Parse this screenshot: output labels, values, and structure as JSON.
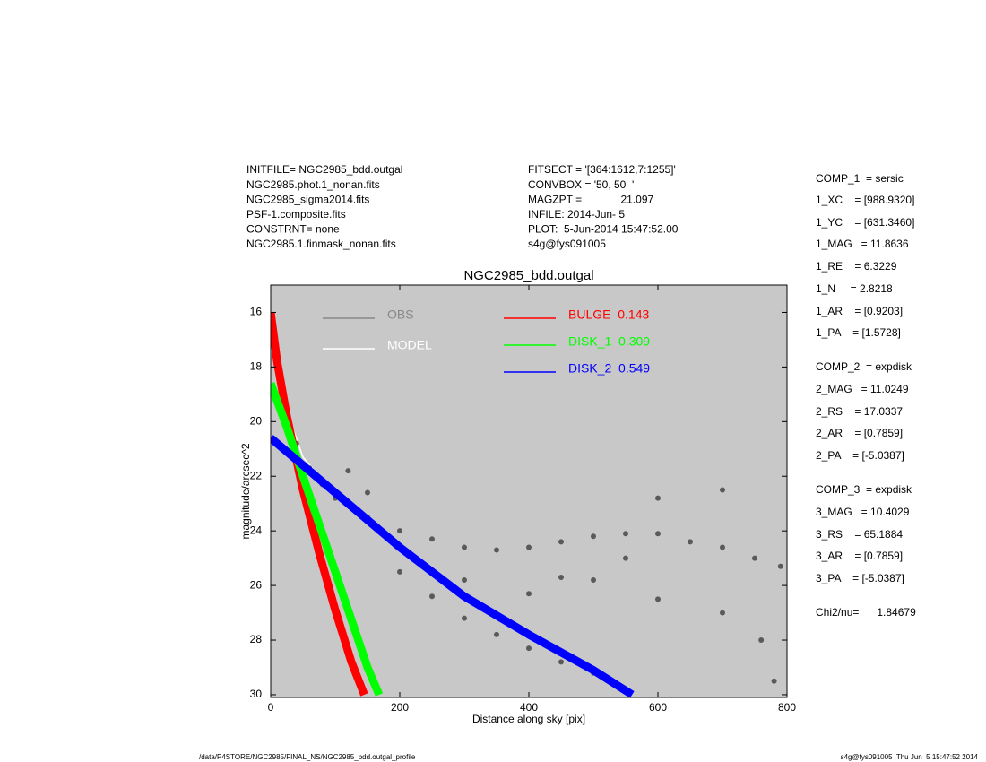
{
  "header": {
    "left": [
      "INITFILE= NGC2985_bdd.outgal",
      "NGC2985.phot.1_nonan.fits",
      "NGC2985_sigma2014.fits",
      "PSF-1.composite.fits",
      "CONSTRNT= none",
      "NGC2985.1.finmask_nonan.fits"
    ],
    "middle": [
      "FITSECT = '[364:1612,7:1255]'",
      "CONVBOX = '50, 50  '",
      "MAGZPT =             21.097",
      "INFILE: 2014-Jun- 5",
      "PLOT:  5-Jun-2014 15:47:52.00",
      "s4g@fys091005"
    ]
  },
  "parameters": [
    "COMP_1  = sersic",
    "1_XC    = [988.9320]",
    "1_YC    = [631.3460]",
    "1_MAG   = 11.8636",
    "1_RE    = 6.3229",
    "1_N     = 2.8218",
    "1_AR    = [0.9203]",
    "1_PA    = [1.5728]",
    "COMP_2  = expdisk",
    "2_MAG   = 11.0249",
    "2_RS    = 17.0337",
    "2_AR    = [0.7859]",
    "2_PA    = [-5.0387]",
    "COMP_3  = expdisk",
    "3_MAG   = 10.4029",
    "3_RS    = 65.1884",
    "3_AR    = [0.7859]",
    "3_PA    = [-5.0387]",
    "Chi2/nu=      1.84679"
  ],
  "footer": {
    "left": "/data/P4STORE/NGC2985/FINAL_NS/NGC2985_bdd.outgal_profile",
    "right": "s4g@fys091005  Thu Jun  5 15:47:52 2014"
  },
  "chart_data": {
    "type": "scatter",
    "title": "NGC2985_bdd.outgal",
    "x_label": "Distance along sky [pix]",
    "y_label": "magnitude/arcsec^2",
    "xlim": [
      0,
      800
    ],
    "xticks": [
      0,
      200,
      400,
      600,
      800
    ],
    "ylim": [
      30.1,
      15
    ],
    "yticks": [
      16,
      18,
      20,
      22,
      24,
      26,
      28,
      30
    ],
    "background": "#c8c8c8",
    "series": [
      {
        "name": "MODEL",
        "color": "#ffffff",
        "kind": "line",
        "x": [
          0,
          25,
          50,
          100,
          200,
          300,
          400
        ],
        "values": [
          16,
          19.6,
          21.3,
          22.7,
          24.6,
          26.4,
          27.8
        ]
      },
      {
        "name": "OBS",
        "color": "#5a5a5a",
        "kind": "points",
        "x": [
          2,
          5,
          10,
          20,
          40,
          60,
          80,
          100,
          120,
          150,
          150,
          200,
          200,
          250,
          250,
          300,
          300,
          300,
          350,
          350,
          400,
          400,
          400,
          450,
          450,
          450,
          500,
          500,
          500,
          550,
          550,
          600,
          600,
          600,
          650,
          700,
          700,
          700,
          750,
          760,
          780,
          790
        ],
        "values": [
          16.2,
          17,
          18,
          19.3,
          20.8,
          21.7,
          22.3,
          22.8,
          21.8,
          23.5,
          22.6,
          24,
          25.5,
          24.3,
          26.4,
          24.6,
          27.2,
          25.8,
          24.7,
          27.8,
          24.6,
          28.3,
          26.3,
          24.4,
          28.8,
          25.7,
          24.2,
          29.2,
          25.8,
          24.1,
          25,
          24.1,
          26.5,
          22.8,
          24.4,
          24.6,
          27,
          22.5,
          25,
          28,
          29.5,
          25.3
        ]
      },
      {
        "name": "BULGE  0.143",
        "color": "#ff0000",
        "kind": "band",
        "x": [
          0,
          10,
          25,
          50,
          75,
          100,
          125,
          145
        ],
        "values": [
          16,
          17.8,
          19.8,
          22.5,
          24.8,
          26.9,
          28.8,
          30
        ]
      },
      {
        "name": "DISK_1  0.309",
        "color": "#00ff00",
        "kind": "band",
        "x": [
          0,
          25,
          50,
          100,
          150,
          168
        ],
        "values": [
          18.6,
          20.2,
          22,
          25.5,
          29,
          30
        ]
      },
      {
        "name": "DISK_2  0.549",
        "color": "#0000ff",
        "kind": "band",
        "x": [
          0,
          100,
          200,
          300,
          400,
          500,
          560
        ],
        "values": [
          20.6,
          22.6,
          24.6,
          26.4,
          27.8,
          29.1,
          30
        ]
      }
    ],
    "legend_text_colors": [
      "#ffffff",
      "#888888",
      "#ff0000",
      "#00ff00",
      "#0000ff"
    ]
  }
}
